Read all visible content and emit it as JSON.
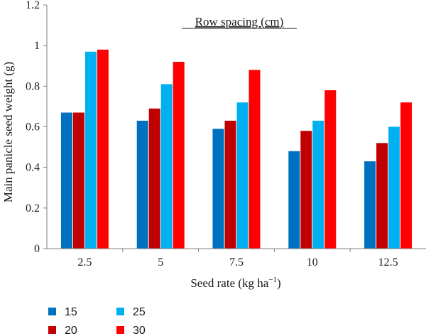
{
  "chart_data": {
    "type": "bar",
    "annotation": "Row spacing (cm)",
    "xlabel": "Seed rate (kg ha",
    "xlabel_sup": "−1",
    "xlabel_close": ")",
    "ylabel": "Main panicle seed weight (g)",
    "ylim": [
      0,
      1.2
    ],
    "yticks": [
      "0",
      "0.2",
      "0.4",
      "0.6",
      "0.8",
      "1",
      "1.2"
    ],
    "categories": [
      "2.5",
      "5",
      "7.5",
      "10",
      "12.5"
    ],
    "series": [
      {
        "name": "15",
        "color": "#0070c0",
        "values": [
          0.67,
          0.63,
          0.59,
          0.48,
          0.43
        ]
      },
      {
        "name": "20",
        "color": "#c00000",
        "values": [
          0.67,
          0.69,
          0.63,
          0.58,
          0.52
        ]
      },
      {
        "name": "25",
        "color": "#00b0f0",
        "values": [
          0.97,
          0.81,
          0.72,
          0.63,
          0.6
        ]
      },
      {
        "name": "30",
        "color": "#ff0000",
        "values": [
          0.98,
          0.92,
          0.88,
          0.78,
          0.72
        ]
      }
    ],
    "legend_position": "bottom-left",
    "grid": false
  }
}
